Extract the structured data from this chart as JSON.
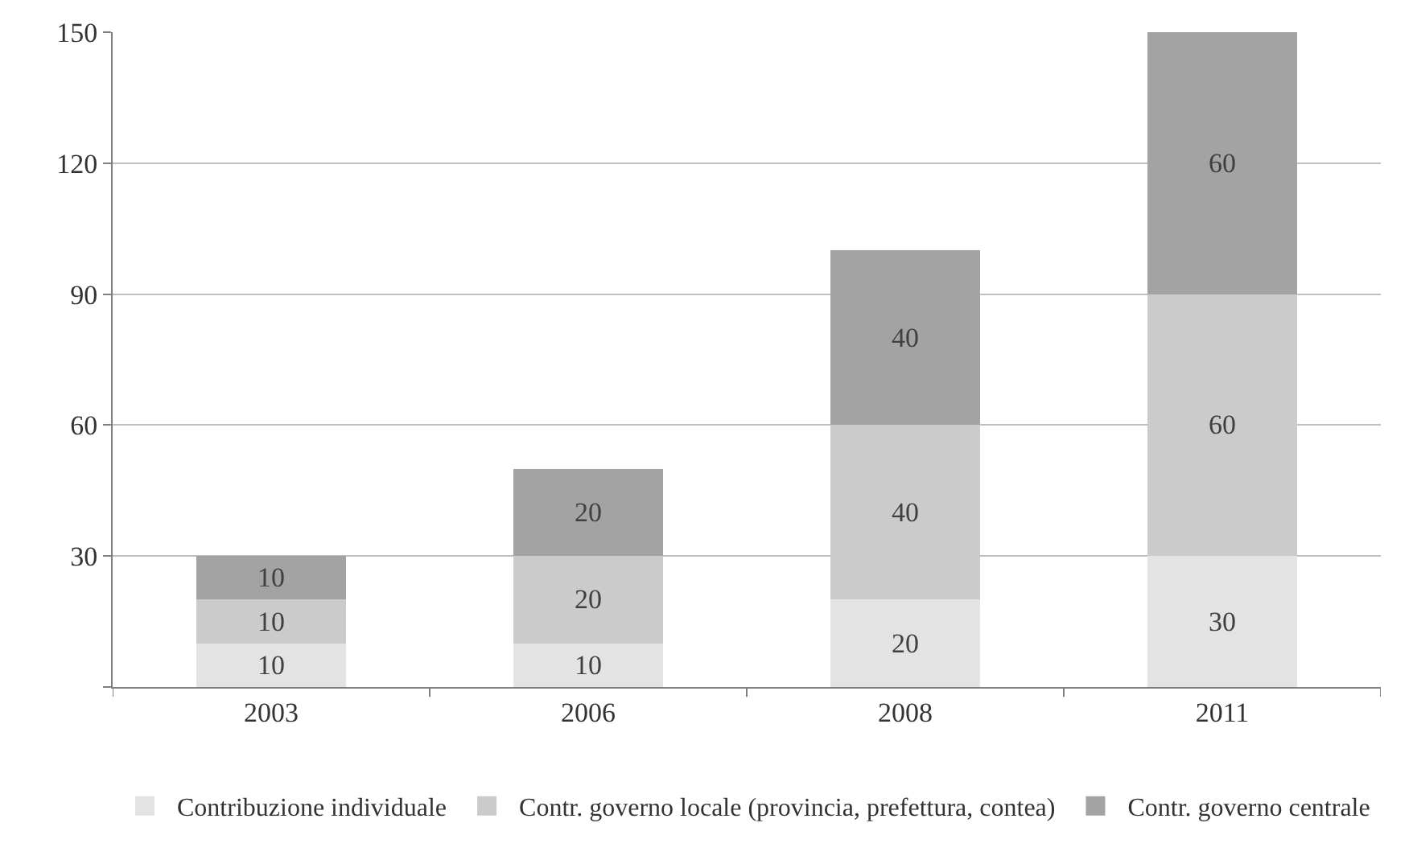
{
  "chart_data": {
    "type": "bar",
    "stacked": true,
    "categories": [
      "2003",
      "2006",
      "2008",
      "2011"
    ],
    "series": [
      {
        "name": "Contribuzione individuale",
        "color": "#e3e3e3",
        "values": [
          10,
          10,
          20,
          30
        ]
      },
      {
        "name": "Contr. governo locale (provincia, prefettura, contea)",
        "color": "#cbcbcb",
        "values": [
          10,
          20,
          40,
          60
        ]
      },
      {
        "name": "Contr. governo centrale",
        "color": "#a3a3a3",
        "values": [
          10,
          20,
          40,
          60
        ]
      }
    ],
    "ylim": [
      0,
      150
    ],
    "yticks": [
      {
        "value": 0,
        "label": null
      },
      30,
      60,
      90,
      120,
      150
    ],
    "grid": "y",
    "legend": "bottom",
    "data_labels": true
  }
}
